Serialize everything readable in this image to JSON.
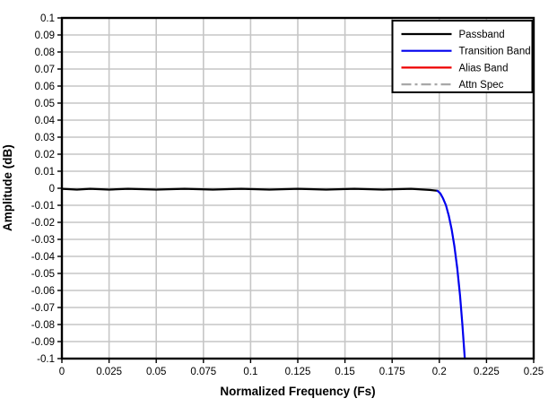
{
  "figure": {
    "background": "#ffffff",
    "text_color": "#000000"
  },
  "chart_data": {
    "type": "line",
    "title": "",
    "xlabel": "Normalized Frequency (Fs)",
    "ylabel": "Amplitude (dB)",
    "xlim": [
      0,
      0.25
    ],
    "ylim": [
      -0.1,
      0.1
    ],
    "x_ticks": [
      0,
      0.025,
      0.05,
      0.075,
      0.1,
      0.125,
      0.15,
      0.175,
      0.2,
      0.225,
      0.25
    ],
    "x_tick_labels": [
      "0",
      "0.025",
      "0.05",
      "0.075",
      "0.1",
      "0.125",
      "0.15",
      "0.175",
      "0.2",
      "0.225",
      "0.25"
    ],
    "y_ticks": [
      0.1,
      0.09,
      0.08,
      0.07,
      0.06,
      0.05,
      0.04,
      0.03,
      0.02,
      0.01,
      0,
      -0.01,
      -0.02,
      -0.03,
      -0.04,
      -0.05,
      -0.06,
      -0.07,
      -0.08,
      -0.09,
      -0.1
    ],
    "y_tick_labels": [
      "0.1",
      "0.09",
      "0.08",
      "0.07",
      "0.06",
      "0.05",
      "0.04",
      "0.03",
      "0.02",
      "0.01",
      "0",
      "-0.01",
      "-0.02",
      "-0.03",
      "-0.04",
      "-0.05",
      "-0.06",
      "-0.07",
      "-0.08",
      "-0.09",
      "-0.1"
    ],
    "grid": true,
    "grid_color": "#c6c6c6",
    "axis_color": "#000000",
    "legend": {
      "position": "top-right",
      "border": true,
      "border_color": "#000000",
      "background": "#ffffff"
    },
    "series": [
      {
        "name": "Passband",
        "color": "#000000",
        "style": "solid",
        "points": [
          [
            0,
            -0.0003
          ],
          [
            0.008,
            -0.0008
          ],
          [
            0.015,
            -0.0003
          ],
          [
            0.025,
            -0.0008
          ],
          [
            0.035,
            -0.0003
          ],
          [
            0.05,
            -0.0008
          ],
          [
            0.065,
            -0.0003
          ],
          [
            0.08,
            -0.0008
          ],
          [
            0.095,
            -0.0003
          ],
          [
            0.11,
            -0.0008
          ],
          [
            0.125,
            -0.0003
          ],
          [
            0.14,
            -0.0008
          ],
          [
            0.155,
            -0.0003
          ],
          [
            0.17,
            -0.0008
          ],
          [
            0.185,
            -0.0003
          ],
          [
            0.195,
            -0.001
          ],
          [
            0.199,
            -0.0015
          ]
        ]
      },
      {
        "name": "Transition Band",
        "color": "#0000ee",
        "style": "solid",
        "points": [
          [
            0.199,
            -0.0015
          ],
          [
            0.2005,
            -0.003
          ],
          [
            0.202,
            -0.006
          ],
          [
            0.2035,
            -0.01
          ],
          [
            0.205,
            -0.016
          ],
          [
            0.2065,
            -0.024
          ],
          [
            0.208,
            -0.034
          ],
          [
            0.2095,
            -0.047
          ],
          [
            0.211,
            -0.063
          ],
          [
            0.2122,
            -0.08
          ],
          [
            0.2135,
            -0.1
          ]
        ]
      },
      {
        "name": "Alias Band",
        "color": "#ee0000",
        "style": "solid",
        "points": []
      },
      {
        "name": "Attn Spec",
        "color": "#a8a8a8",
        "style": "dash-dot",
        "points": []
      }
    ]
  }
}
